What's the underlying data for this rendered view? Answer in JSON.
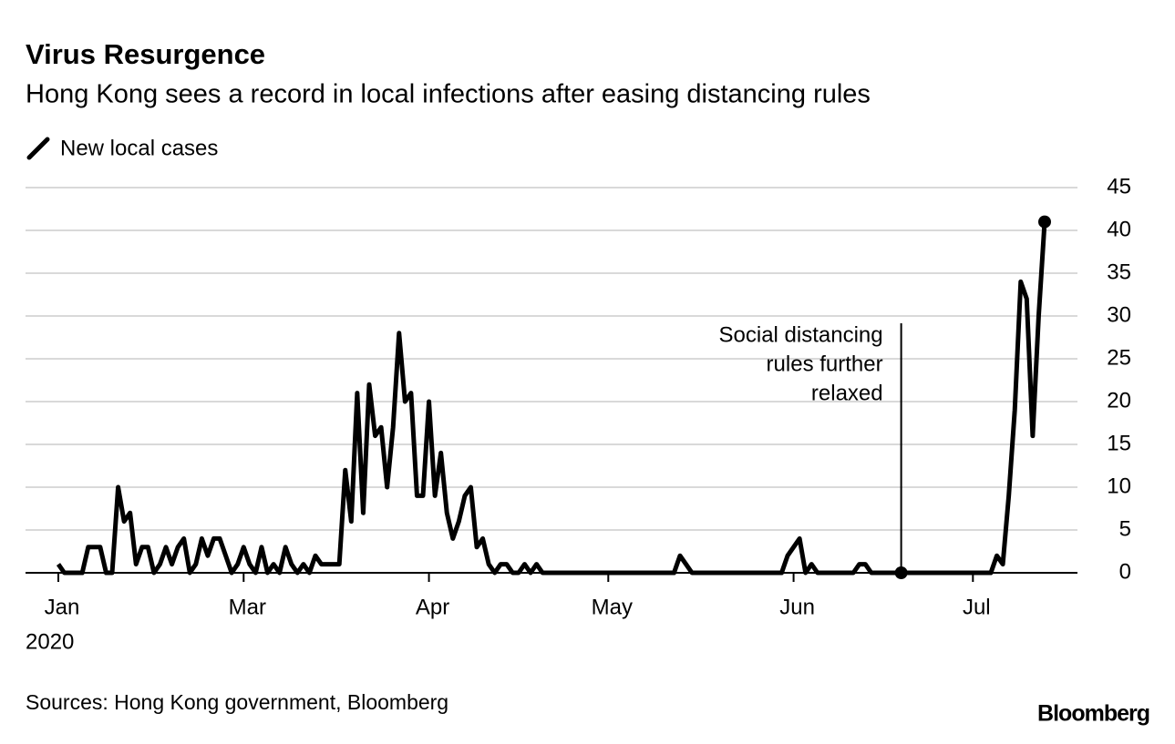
{
  "chart_data": {
    "type": "line",
    "title": "Virus Resurgence",
    "subtitle": "Hong Kong sees a record in local infections after easing distancing rules",
    "x_year_label": "2020",
    "source": "Sources: Hong Kong government, Bloomberg",
    "brand": "Bloomberg",
    "categories": [
      "Jan",
      null,
      null,
      null,
      null,
      null,
      null,
      null,
      null,
      null,
      null,
      null,
      null,
      null,
      null,
      null,
      null,
      null,
      null,
      null,
      null,
      null,
      null,
      null,
      null,
      null,
      null,
      null,
      null,
      null,
      null,
      "Mar",
      null,
      null,
      null,
      null,
      null,
      null,
      null,
      null,
      null,
      null,
      null,
      null,
      null,
      null,
      null,
      null,
      null,
      null,
      null,
      null,
      null,
      null,
      null,
      null,
      null,
      null,
      null,
      null,
      null,
      null,
      "Apr",
      null,
      null,
      null,
      null,
      null,
      null,
      null,
      null,
      null,
      null,
      null,
      null,
      null,
      null,
      null,
      null,
      null,
      null,
      null,
      null,
      null,
      null,
      null,
      null,
      null,
      null,
      null,
      null,
      null,
      "May",
      null,
      null,
      null,
      null,
      null,
      null,
      null,
      null,
      null,
      null,
      null,
      null,
      null,
      null,
      null,
      null,
      null,
      null,
      null,
      null,
      null,
      null,
      null,
      null,
      null,
      null,
      null,
      null,
      null,
      null,
      "Jun",
      null,
      null,
      null,
      null,
      null,
      null,
      null,
      null,
      null,
      null,
      null,
      null,
      null,
      null,
      null,
      null,
      null,
      null,
      null,
      null,
      null,
      null,
      null,
      null,
      null,
      null,
      null,
      null,
      null,
      "Jul",
      null,
      null,
      null,
      null,
      null,
      null,
      null,
      null,
      null,
      null,
      null,
      null
    ],
    "series": [
      {
        "name": "New local cases",
        "color": "#000000",
        "values": [
          1,
          0,
          0,
          0,
          0,
          3,
          3,
          3,
          0,
          0,
          10,
          6,
          7,
          1,
          3,
          3,
          0,
          1,
          3,
          1,
          3,
          4,
          0,
          1,
          4,
          2,
          4,
          4,
          2,
          0,
          1,
          3,
          1,
          0,
          3,
          0,
          1,
          0,
          3,
          1,
          0,
          1,
          0,
          2,
          1,
          1,
          1,
          1,
          12,
          6,
          21,
          7,
          22,
          16,
          17,
          10,
          17,
          28,
          20,
          21,
          9,
          9,
          20,
          9,
          14,
          7,
          4,
          6,
          9,
          10,
          3,
          4,
          1,
          0,
          1,
          1,
          0,
          0,
          1,
          0,
          1,
          0,
          0,
          0,
          0,
          0,
          0,
          0,
          0,
          0,
          0,
          0,
          0,
          0,
          0,
          0,
          0,
          0,
          0,
          0,
          0,
          0,
          0,
          0,
          2,
          1,
          0,
          0,
          0,
          0,
          0,
          0,
          0,
          0,
          0,
          0,
          0,
          0,
          0,
          0,
          0,
          0,
          2,
          3,
          4,
          0,
          1,
          0,
          0,
          0,
          0,
          0,
          0,
          0,
          1,
          1,
          0,
          0,
          0,
          0,
          0,
          0,
          0,
          0,
          0,
          0,
          0,
          0,
          0,
          0,
          0,
          0,
          0,
          0,
          0,
          0,
          0,
          2,
          1,
          9,
          19,
          34,
          32,
          16,
          30,
          41
        ]
      }
    ],
    "annotation": {
      "lines": [
        "Social distancing",
        "rules further",
        "relaxed"
      ],
      "index": 141
    },
    "ylim": [
      0,
      45
    ],
    "yticks": [
      0,
      5,
      10,
      15,
      20,
      25,
      30,
      35,
      40,
      45
    ],
    "grid": true
  }
}
